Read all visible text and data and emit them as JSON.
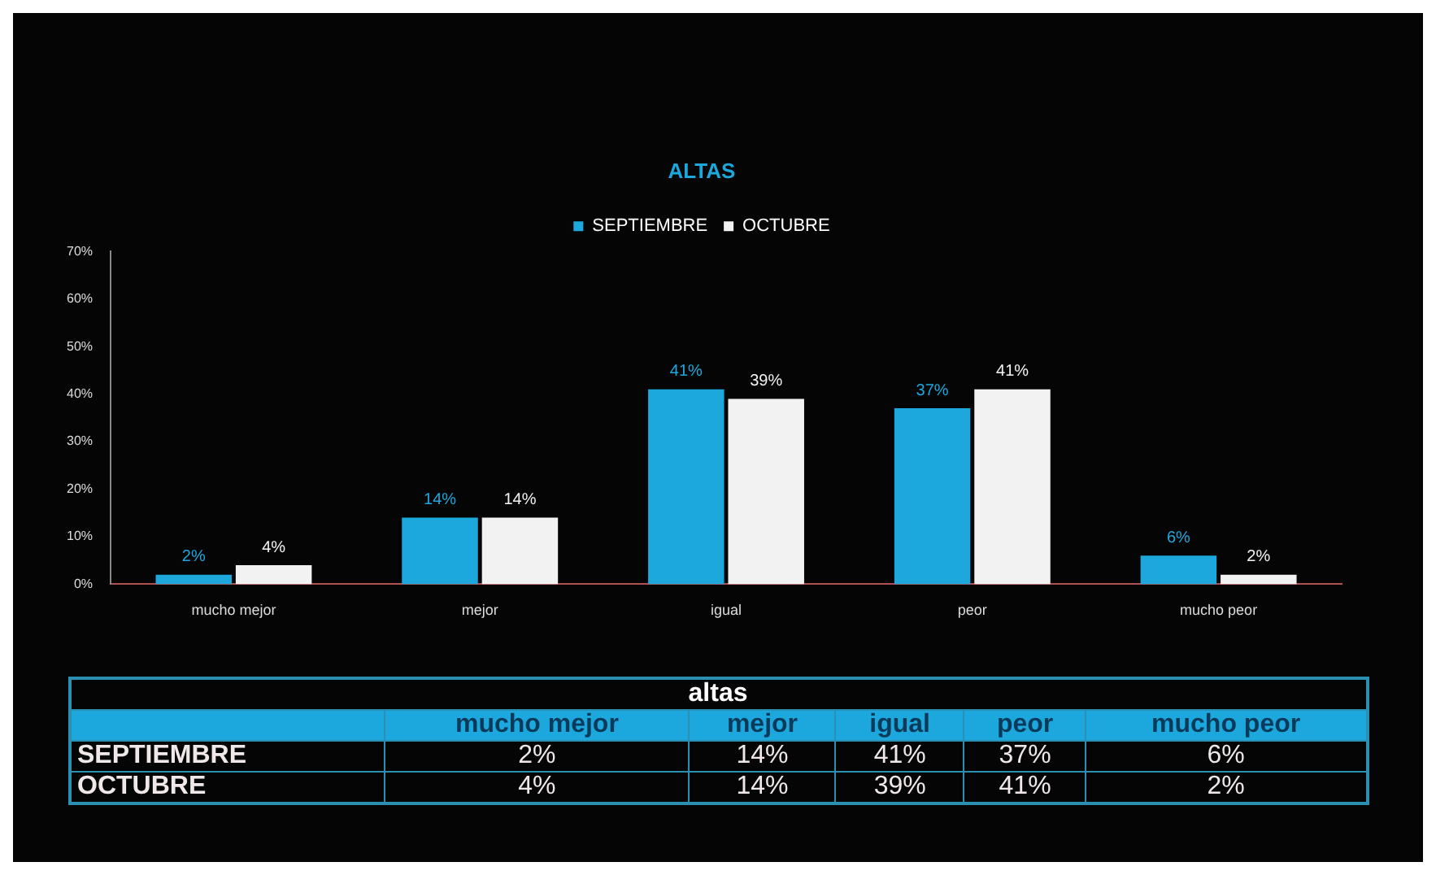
{
  "chart_data": {
    "type": "bar",
    "title": "ALTAS",
    "categories": [
      "mucho mejor",
      "mejor",
      "igual",
      "peor",
      "mucho peor"
    ],
    "series": [
      {
        "name": "SEPTIEMBRE",
        "color": "#1ca8dd",
        "values": [
          2,
          14,
          41,
          37,
          6
        ],
        "value_labels": [
          "2%",
          "14%",
          "41%",
          "37%",
          "6%"
        ]
      },
      {
        "name": "OCTUBRE",
        "color": "#f2f2f2",
        "values": [
          4,
          14,
          39,
          41,
          2
        ],
        "value_labels": [
          "4%",
          "14%",
          "39%",
          "41%",
          "2%"
        ]
      }
    ],
    "ylim": [
      0,
      70
    ],
    "yticks": [
      {
        "value": 0,
        "label": "0%"
      },
      {
        "value": 10,
        "label": "10%"
      },
      {
        "value": 20,
        "label": "20%"
      },
      {
        "value": 30,
        "label": "30%"
      },
      {
        "value": 40,
        "label": "40%"
      },
      {
        "value": 50,
        "label": "50%"
      },
      {
        "value": 60,
        "label": "60%"
      },
      {
        "value": 70,
        "label": "70%"
      }
    ],
    "grid": false,
    "legend": "top",
    "annotations": [
      "altas"
    ]
  }
}
